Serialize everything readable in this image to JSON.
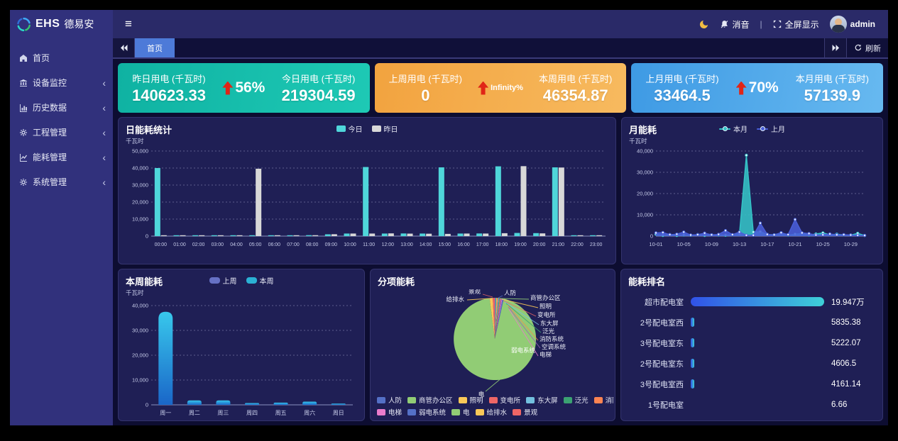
{
  "brand": {
    "ehs": "EHS",
    "cn": "德易安"
  },
  "topbar": {
    "mute_label": "消音",
    "divider": "|",
    "fullscreen_label": "全屏显示",
    "username": "admin"
  },
  "sidebar": {
    "items": [
      {
        "label": "首页",
        "icon": "home-icon",
        "has_children": false
      },
      {
        "label": "设备监控",
        "icon": "device-monitor-icon",
        "has_children": true
      },
      {
        "label": "历史数据",
        "icon": "history-data-icon",
        "has_children": true
      },
      {
        "label": "工程管理",
        "icon": "engineering-gears-icon",
        "has_children": true
      },
      {
        "label": "能耗管理",
        "icon": "energy-chart-icon",
        "has_children": true
      },
      {
        "label": "系统管理",
        "icon": "system-gear-icon",
        "has_children": true
      }
    ]
  },
  "tabs": {
    "active": "首页",
    "refresh_label": "刷新"
  },
  "kpis": [
    {
      "left_label": "昨日用电 (千瓦时)",
      "left_value": "140623.33",
      "pct": "56%",
      "right_label": "今日用电 (千瓦时)",
      "right_value": "219304.59",
      "color": "#12b5a6"
    },
    {
      "left_label": "上周用电 (千瓦时)",
      "left_value": "0",
      "pct": "Infinity%",
      "right_label": "本周用电 (千瓦时)",
      "right_value": "46354.87",
      "color": "#f4ab4b"
    },
    {
      "left_label": "上月用电 (千瓦时)",
      "left_value": "33464.5",
      "pct": "70%",
      "right_label": "本月用电 (千瓦时)",
      "right_value": "57139.9",
      "color": "#4ea6e9"
    }
  ],
  "chart_data": [
    {
      "type": "bar",
      "title": "日能耗统计",
      "unit": "千瓦时",
      "categories": [
        "00:00",
        "01:00",
        "02:00",
        "03:00",
        "04:00",
        "05:00",
        "06:00",
        "07:00",
        "08:00",
        "09:00",
        "10:00",
        "11:00",
        "12:00",
        "13:00",
        "14:00",
        "15:00",
        "16:00",
        "17:00",
        "18:00",
        "19:00",
        "20:00",
        "21:00",
        "22:00",
        "23:00"
      ],
      "series": [
        {
          "name": "今日",
          "color": "#4fd6da",
          "values": [
            40000,
            400,
            400,
            350,
            350,
            400,
            400,
            400,
            550,
            1050,
            1500,
            40600,
            1500,
            1550,
            1500,
            40400,
            1500,
            1550,
            41000,
            1850,
            1750,
            40400,
            400,
            350
          ]
        },
        {
          "name": "昨日",
          "color": "#d8d8d8",
          "values": [
            500,
            400,
            380,
            350,
            340,
            39600,
            420,
            400,
            520,
            1100,
            1500,
            1500,
            1600,
            1450,
            1400,
            1300,
            1500,
            1500,
            1700,
            41100,
            1600,
            40300,
            420,
            380
          ]
        }
      ],
      "ylim": [
        0,
        50000
      ],
      "yticks": [
        0,
        10000,
        20000,
        30000,
        40000,
        50000
      ],
      "grid": "dashed",
      "legend_position": "top-center"
    },
    {
      "type": "area",
      "title": "月能耗",
      "unit": "千瓦时",
      "x": [
        "10-01",
        "10-02",
        "10-03",
        "10-04",
        "10-05",
        "10-06",
        "10-07",
        "10-08",
        "10-09",
        "10-10",
        "10-11",
        "10-12",
        "10-13",
        "10-14",
        "10-15",
        "10-16",
        "10-17",
        "10-18",
        "10-19",
        "10-20",
        "10-21",
        "10-22",
        "10-23",
        "10-24",
        "10-25",
        "10-26",
        "10-27",
        "10-28",
        "10-29",
        "10-30",
        "10-31"
      ],
      "xticks": [
        "10-01",
        "10-05",
        "10-09",
        "10-13",
        "10-17",
        "10-21",
        "10-25",
        "10-29"
      ],
      "series": [
        {
          "name": "本月",
          "color": "#35c4c7",
          "values": [
            900,
            300,
            700,
            300,
            500,
            400,
            700,
            300,
            600,
            500,
            400,
            600,
            1000,
            38000,
            1900,
            2100,
            800,
            600,
            1500,
            500,
            900,
            1300,
            500,
            1000,
            1500,
            700,
            900,
            600,
            500,
            1300,
            300
          ]
        },
        {
          "name": "上月",
          "color": "#4a5fd8",
          "values": [
            1500,
            1700,
            700,
            900,
            1900,
            500,
            700,
            1400,
            600,
            800,
            2600,
            700,
            1900,
            400,
            400,
            6100,
            800,
            600,
            1600,
            700,
            7800,
            1500,
            1200,
            500,
            600,
            1000,
            600,
            700,
            500,
            400,
            300
          ]
        }
      ],
      "ylim": [
        0,
        40000
      ],
      "yticks": [
        0,
        10000,
        20000,
        30000,
        40000
      ],
      "grid": "dashed",
      "legend_position": "top-center"
    },
    {
      "type": "bar",
      "title": "本周能耗",
      "unit": "千瓦时",
      "categories": [
        "周一",
        "周二",
        "周三",
        "周四",
        "周五",
        "周六",
        "周日"
      ],
      "series": [
        {
          "name": "上周",
          "color": "#6671c4",
          "values": [
            0,
            0,
            0,
            0,
            0,
            0,
            0
          ]
        },
        {
          "name": "本周",
          "color": "#2bb1d4",
          "values": [
            37500,
            1800,
            1800,
            700,
            900,
            1300,
            500
          ]
        }
      ],
      "ylim": [
        0,
        40000
      ],
      "yticks": [
        0,
        10000,
        20000,
        30000,
        40000
      ],
      "grid": "dashed",
      "legend_position": "top-center",
      "bar_gradient": [
        "#38c8ec",
        "#1a66c8"
      ]
    },
    {
      "type": "pie",
      "title": "分项能耗",
      "items": [
        {
          "name": "人防",
          "color": "#5470c6",
          "value": 0.4
        },
        {
          "name": "商管办公区",
          "color": "#91cc75",
          "value": 0.35
        },
        {
          "name": "照明",
          "color": "#fac858",
          "value": 0.3
        },
        {
          "name": "变电所",
          "color": "#ee6666",
          "value": 0.3
        },
        {
          "name": "东大屏",
          "color": "#73c0de",
          "value": 0.3
        },
        {
          "name": "泛光",
          "color": "#3ba272",
          "value": 0.3
        },
        {
          "name": "消防系统",
          "color": "#fc8452",
          "value": 0.35
        },
        {
          "name": "空调系统",
          "color": "#9a60b4",
          "value": 0.4
        },
        {
          "name": "电梯",
          "color": "#ea7ccc",
          "value": 0.3
        },
        {
          "name": "弱电系统",
          "color": "#5470c6",
          "value": 0.5
        },
        {
          "name": "电",
          "color": "#91cc75",
          "value": 94.5
        },
        {
          "name": "给排水",
          "color": "#fac858",
          "value": 1.2
        },
        {
          "name": "景观",
          "color": "#ee6666",
          "value": 0.8
        }
      ],
      "legend_position": "bottom"
    },
    {
      "type": "hbar",
      "title": "能耗排名",
      "items": [
        {
          "name": "超市配电室",
          "value": 199470,
          "display": "19.947万"
        },
        {
          "name": "2号配电室西",
          "value": 5835.38,
          "display": "5835.38"
        },
        {
          "name": "3号配电室东",
          "value": 5222.07,
          "display": "5222.07"
        },
        {
          "name": "2号配电室东",
          "value": 4606.5,
          "display": "4606.5"
        },
        {
          "name": "3号配电室西",
          "value": 4161.14,
          "display": "4161.14"
        },
        {
          "name": "1号配电室",
          "value": 6.66,
          "display": "6.66"
        }
      ],
      "bar_gradient": [
        "#3152e8",
        "#3ed0d8"
      ]
    }
  ]
}
